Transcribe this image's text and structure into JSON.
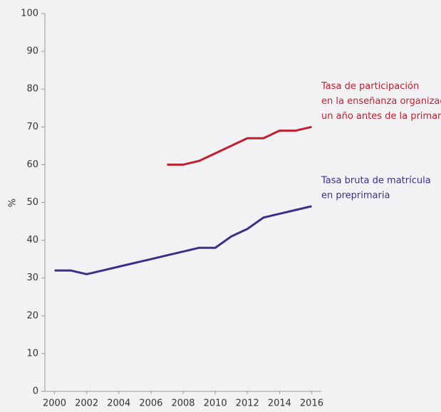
{
  "chart_data": {
    "type": "line",
    "y_label": "%",
    "x": [
      2000,
      2001,
      2002,
      2003,
      2004,
      2005,
      2006,
      2007,
      2008,
      2009,
      2010,
      2011,
      2012,
      2013,
      2014,
      2015,
      2016
    ],
    "xlim": [
      1999.4,
      2016.6
    ],
    "xticks": [
      2000,
      2002,
      2004,
      2006,
      2008,
      2010,
      2012,
      2014,
      2016
    ],
    "ylim": [
      0,
      100
    ],
    "yticks": [
      0,
      10,
      20,
      30,
      40,
      50,
      60,
      70,
      80,
      90,
      100
    ],
    "grid": false,
    "series": [
      {
        "color": "#c0202f",
        "values": [
          null,
          null,
          null,
          null,
          null,
          null,
          null,
          60,
          60,
          61,
          63,
          65,
          67,
          67,
          69,
          69,
          70
        ],
        "annotation": [
          "Tasa de  participación",
          "en la enseñanza organizada",
          "un año  antes de la primaria"
        ]
      },
      {
        "color": "#3c2e8a",
        "values": [
          32,
          32,
          31,
          32,
          33,
          34,
          35,
          36,
          37,
          38,
          38,
          41,
          43,
          46,
          47,
          48,
          49
        ],
        "annotation": [
          "Tasa bruta de matrícula",
          "en preprimaria"
        ]
      }
    ]
  }
}
